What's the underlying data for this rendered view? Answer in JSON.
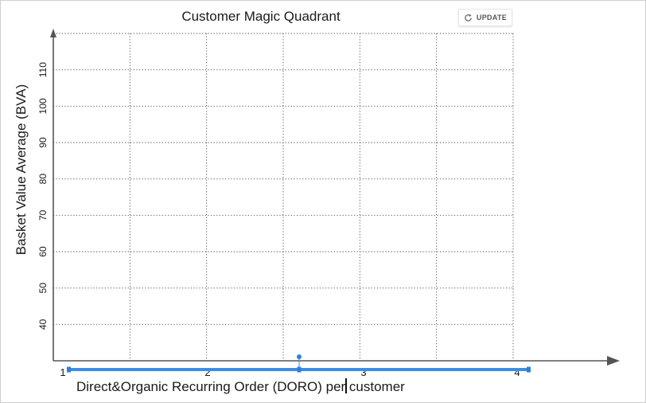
{
  "toolbar": {
    "update_label": "UPDATE",
    "update_icon": "refresh-icon"
  },
  "chart_data": {
    "type": "scatter",
    "title": "Customer Magic Quadrant",
    "xlabel": "Direct&Organic Recurring Order (DORO) per customer",
    "ylabel": "Basket Value Average (BVA)",
    "x_ticks": [
      "1",
      "2",
      "3",
      "4"
    ],
    "y_ticks": [
      "40",
      "50",
      "60",
      "70",
      "80",
      "90",
      "100",
      "110"
    ],
    "xlim": [
      1,
      4
    ],
    "ylim": [
      30,
      120
    ],
    "grid": true,
    "series": [],
    "x_range_slider": {
      "min": 1,
      "max": 4,
      "handle_value": 2.2
    },
    "colors": {
      "slider": "#3a8ee6",
      "axis": "#555555",
      "grid": "#444444"
    }
  }
}
